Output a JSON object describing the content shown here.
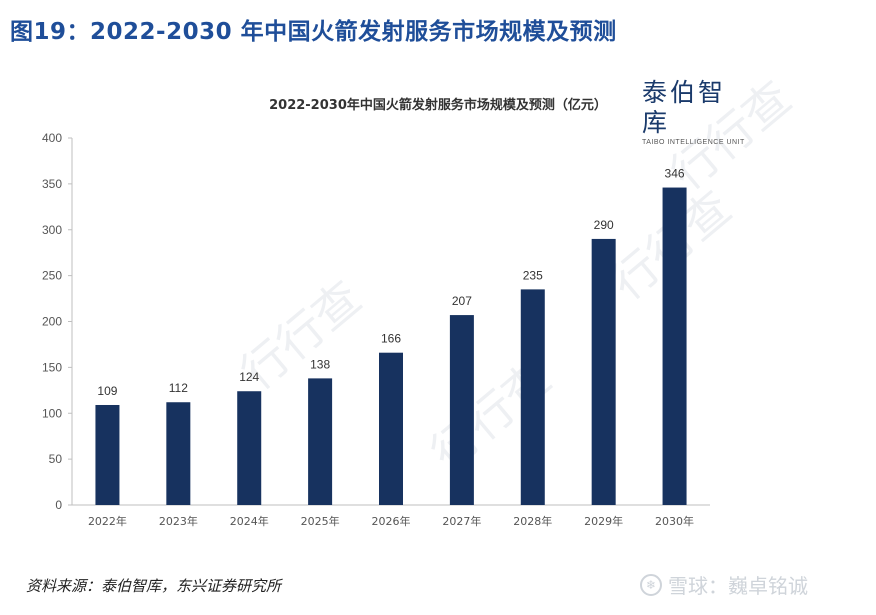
{
  "figure_title": "图19：2022-2030 年中国火箭发射服务市场规模及预测",
  "source_text": "资料来源：泰伯智库，东兴证券研究所",
  "brand": {
    "name": "泰伯智库",
    "subtitle": "TAIBO INTELLIGENCE UNIT"
  },
  "background_watermark": "行行查",
  "xueqiu_watermark": {
    "icon": "snowball-icon",
    "text": "雪球：巍卓铭诚"
  },
  "colors": {
    "bar": "#17325f",
    "title": "#1f4e99",
    "axis": "#bfbfbf"
  },
  "chart_data": {
    "type": "bar",
    "title": "2022-2030年中国火箭发射服务市场规模及预测（亿元）",
    "xlabel": "",
    "ylabel": "",
    "categories": [
      "2022年",
      "2023年",
      "2024年",
      "2025年",
      "2026年",
      "2027年",
      "2028年",
      "2029年",
      "2030年"
    ],
    "values": [
      109,
      112,
      124,
      138,
      166,
      207,
      235,
      290,
      346
    ],
    "data_labels": [
      "109",
      "112",
      "124",
      "138",
      "166",
      "207",
      "235",
      "290",
      "346"
    ],
    "y_ticks": [
      "0",
      "50",
      "100",
      "150",
      "200",
      "250",
      "300",
      "350",
      "400"
    ],
    "ylim": [
      0,
      400
    ],
    "grid": false,
    "legend": "none"
  }
}
